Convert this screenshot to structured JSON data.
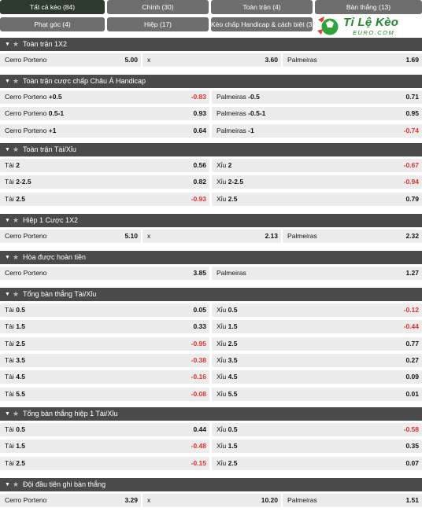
{
  "tabs": [
    {
      "label": "Tất cả kèo (84)",
      "active": true
    },
    {
      "label": "Chính (30)"
    },
    {
      "label": "Toàn trận (4)"
    },
    {
      "label": "Bàn thắng (13)"
    },
    {
      "label": "Phạt góc (4)"
    },
    {
      "label": "Hiệp (17)"
    },
    {
      "label": "Kèo chấp Handicap & cách biệt (3)"
    }
  ],
  "logo": {
    "text": "Tỉ Lệ Kèo",
    "sub": "EURO.COM",
    "color": "#1f8a2c"
  },
  "colors": {
    "header_bg": "#4a4a4a",
    "cell_bg": "#ececec",
    "negative": "#e0302a",
    "tab_bg": "#6e6e6e",
    "tab_active_bg": "#2e3a2f"
  },
  "sections": [
    {
      "title": "Toàn trận 1X2",
      "rows": [
        [
          {
            "name": "Cerro Porteno",
            "val": "5.00"
          },
          {
            "name": "x",
            "val": "3.60"
          },
          {
            "name": "Palmeiras",
            "val": "1.69"
          }
        ]
      ]
    },
    {
      "title": "Toàn trận cược chấp Châu Á Handicap",
      "rows": [
        [
          {
            "name": "Cerro Porteno",
            "line": "+0.5",
            "val": "-0.83"
          },
          {
            "name": "Palmeiras",
            "line": "-0.5",
            "val": "0.71"
          }
        ],
        [
          {
            "name": "Cerro Porteno",
            "line": "0.5-1",
            "val": "0.93"
          },
          {
            "name": "Palmeiras",
            "line": "-0.5-1",
            "val": "0.95"
          }
        ],
        [
          {
            "name": "Cerro Porteno",
            "line": "+1",
            "val": "0.64"
          },
          {
            "name": "Palmeiras",
            "line": "-1",
            "val": "-0.74"
          }
        ]
      ]
    },
    {
      "title": "Toàn trận Tài/Xỉu",
      "rows": [
        [
          {
            "name": "Tài",
            "line": "2",
            "val": "0.56"
          },
          {
            "name": "Xỉu",
            "line": "2",
            "val": "-0.67"
          }
        ],
        [
          {
            "name": "Tài",
            "line": "2-2.5",
            "val": "0.82"
          },
          {
            "name": "Xỉu",
            "line": "2-2.5",
            "val": "-0.94"
          }
        ],
        [
          {
            "name": "Tài",
            "line": "2.5",
            "val": "-0.93"
          },
          {
            "name": "Xỉu",
            "line": "2.5",
            "val": "0.79"
          }
        ]
      ]
    },
    {
      "title": "Hiệp 1 Cược 1X2",
      "rows": [
        [
          {
            "name": "Cerro Porteno",
            "val": "5.10"
          },
          {
            "name": "x",
            "val": "2.13"
          },
          {
            "name": "Palmeiras",
            "val": "2.32"
          }
        ]
      ]
    },
    {
      "title": "Hòa được hoàn tiền",
      "rows": [
        [
          {
            "name": "Cerro Porteno",
            "val": "3.85"
          },
          {
            "name": "Palmeiras",
            "val": "1.27"
          }
        ]
      ]
    },
    {
      "title": "Tổng bàn thắng Tài/Xỉu",
      "rows": [
        [
          {
            "name": "Tài",
            "line": "0.5",
            "val": "0.05"
          },
          {
            "name": "Xỉu",
            "line": "0.5",
            "val": "-0.12"
          }
        ],
        [
          {
            "name": "Tài",
            "line": "1.5",
            "val": "0.33"
          },
          {
            "name": "Xỉu",
            "line": "1.5",
            "val": "-0.44"
          }
        ],
        [
          {
            "name": "Tài",
            "line": "2.5",
            "val": "-0.95"
          },
          {
            "name": "Xỉu",
            "line": "2.5",
            "val": "0.77"
          }
        ],
        [
          {
            "name": "Tài",
            "line": "3.5",
            "val": "-0.38"
          },
          {
            "name": "Xỉu",
            "line": "3.5",
            "val": "0.27"
          }
        ],
        [
          {
            "name": "Tài",
            "line": "4.5",
            "val": "-0.16"
          },
          {
            "name": "Xỉu",
            "line": "4.5",
            "val": "0.09"
          }
        ],
        [
          {
            "name": "Tài",
            "line": "5.5",
            "val": "-0.08"
          },
          {
            "name": "Xỉu",
            "line": "5.5",
            "val": "0.01"
          }
        ]
      ]
    },
    {
      "title": "Tổng bàn thắng hiệp 1 Tài/Xỉu",
      "rows": [
        [
          {
            "name": "Tài",
            "line": "0.5",
            "val": "0.44"
          },
          {
            "name": "Xỉu",
            "line": "0.5",
            "val": "-0.58"
          }
        ],
        [
          {
            "name": "Tài",
            "line": "1.5",
            "val": "-0.48"
          },
          {
            "name": "Xỉu",
            "line": "1.5",
            "val": "0.35"
          }
        ],
        [
          {
            "name": "Tài",
            "line": "2.5",
            "val": "-0.15"
          },
          {
            "name": "Xỉu",
            "line": "2.5",
            "val": "0.07"
          }
        ]
      ]
    },
    {
      "title": "Đội đầu tiên ghi bàn thắng",
      "rows": [
        [
          {
            "name": "Cerro Porteno",
            "val": "3.29"
          },
          {
            "name": "x",
            "val": "10.20"
          },
          {
            "name": "Palmeiras",
            "val": "1.51"
          }
        ]
      ]
    }
  ]
}
